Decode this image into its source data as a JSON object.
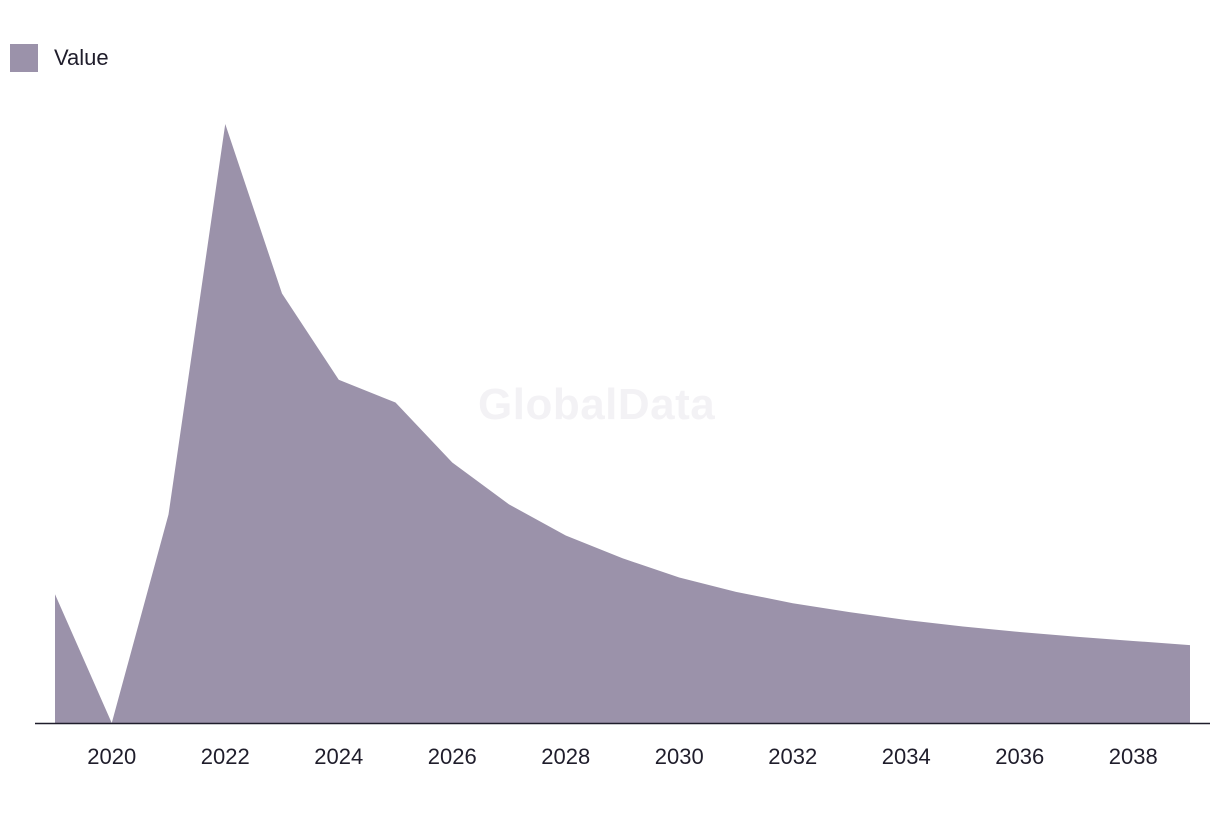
{
  "legend": {
    "label": "Value",
    "color": "#9b92aa"
  },
  "watermark": "GlobalData",
  "colors": {
    "area": "#9b92aa",
    "axis": "#1f1d2b",
    "watermark": "#f3f2f5"
  },
  "chart_data": {
    "type": "area",
    "title": "",
    "xlabel": "",
    "ylabel": "",
    "x": [
      2019,
      2020,
      2021,
      2022,
      2023,
      2024,
      2025,
      2026,
      2027,
      2028,
      2029,
      2030,
      2031,
      2032,
      2033,
      2034,
      2035,
      2036,
      2037,
      2038,
      2039
    ],
    "series": [
      {
        "values": [
          21.5,
          0,
          34.8,
          100,
          71.7,
          57.3,
          53.5,
          43.5,
          36.5,
          31.3,
          27.5,
          24.3,
          21.9,
          20.0,
          18.5,
          17.2,
          16.1,
          15.2,
          14.4,
          13.7,
          13.0
        ]
      }
    ],
    "xticks": [
      "2020",
      "2022",
      "2024",
      "2026",
      "2028",
      "2030",
      "2032",
      "2034",
      "2036",
      "2038"
    ],
    "ylim": [
      0,
      100
    ],
    "grid": false,
    "legend_position": "top-left"
  }
}
